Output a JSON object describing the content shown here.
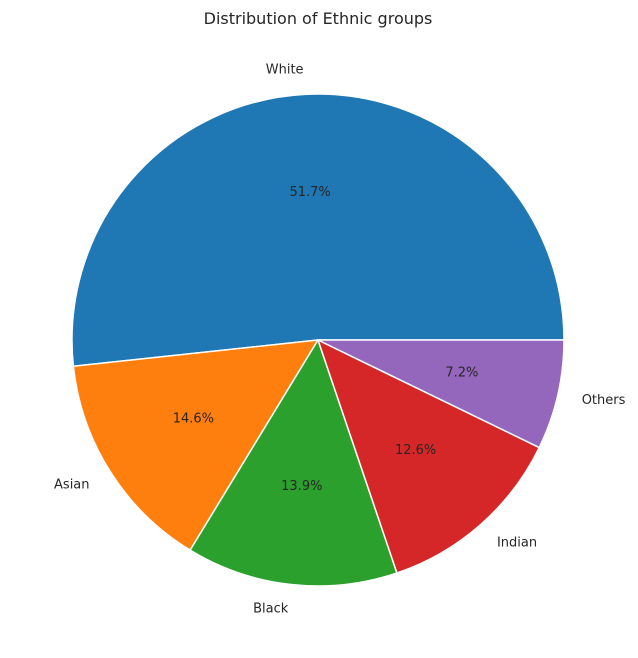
{
  "chart_data": {
    "type": "pie",
    "title": "Distribution of Ethnic groups",
    "slices": [
      {
        "label": "White",
        "value": 51.7,
        "pct_label": "51.7%",
        "color": "#1f77b4"
      },
      {
        "label": "Asian",
        "value": 14.6,
        "pct_label": "14.6%",
        "color": "#ff7f0e"
      },
      {
        "label": "Black",
        "value": 13.9,
        "pct_label": "13.9%",
        "color": "#2ca02c"
      },
      {
        "label": "Indian",
        "value": 12.6,
        "pct_label": "12.6%",
        "color": "#d62728"
      },
      {
        "label": "Others",
        "value": 7.2,
        "pct_label": "7.2%",
        "color": "#9467bd"
      }
    ],
    "start_angle_deg": 0,
    "direction": "counterclockwise",
    "legend": "none"
  }
}
